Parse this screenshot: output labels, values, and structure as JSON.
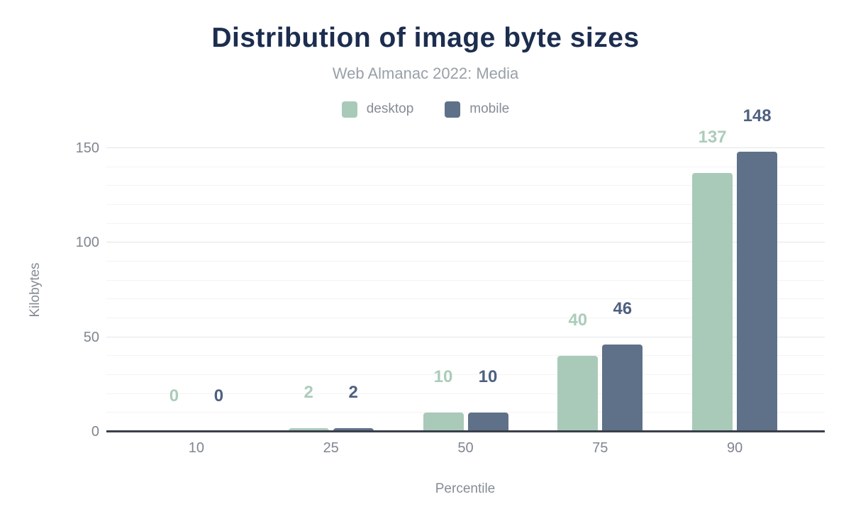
{
  "chart_data": {
    "type": "bar",
    "title": "Distribution of image byte sizes",
    "subtitle": "Web Almanac 2022: Media",
    "xlabel": "Percentile",
    "ylabel": "Kilobytes",
    "categories": [
      "10",
      "25",
      "50",
      "75",
      "90"
    ],
    "series": [
      {
        "name": "desktop",
        "color": "#a9cab9",
        "label_color": "#abccba",
        "values": [
          0,
          2,
          10,
          40,
          137
        ]
      },
      {
        "name": "mobile",
        "color": "#5f7189",
        "label_color": "#4e6080",
        "values": [
          0,
          2,
          10,
          46,
          148
        ]
      }
    ],
    "ylim": [
      0,
      150
    ],
    "yticks": [
      0,
      50,
      100,
      150
    ],
    "minor_grid_step": 10,
    "major_grid_step": 50,
    "grid": "horizontal",
    "legend_position": "top"
  },
  "theme": {
    "background": "#ffffff",
    "title_color": "#1c2d4f",
    "subtitle_color": "#9aa0a8",
    "axis_text_color": "#80868f",
    "axis_title_color": "#868c96",
    "baseline_color": "#3a3f4a",
    "major_grid_color": "#e4e5e9",
    "minor_grid_color": "#f3f3f5"
  }
}
